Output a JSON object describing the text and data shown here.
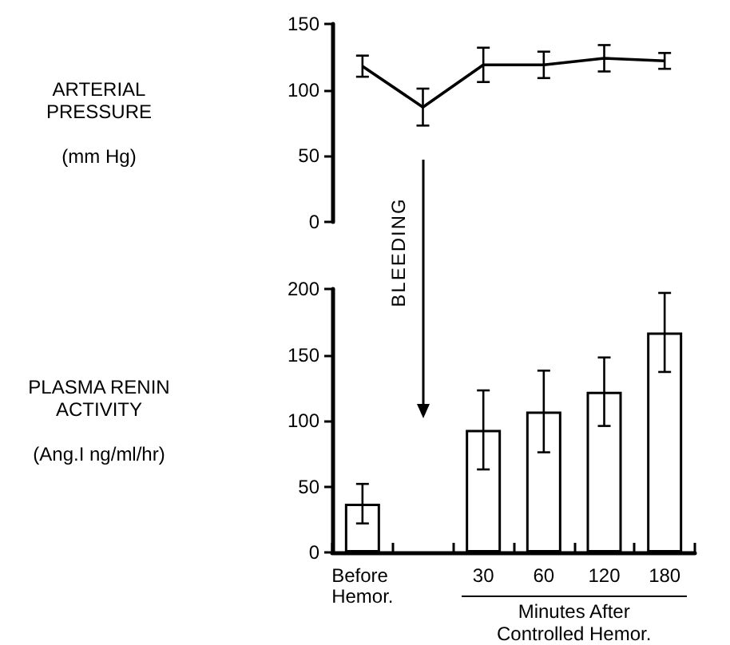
{
  "chart_data": [
    {
      "type": "line",
      "ylabel": "ARTERIAL\nPRESSURE\n\n(mm Hg)",
      "categories": [
        "Before Hemor.",
        null,
        "30",
        "60",
        "120",
        "180"
      ],
      "series": [
        {
          "color": "#000000",
          "values": [
            118,
            87,
            119,
            119,
            124,
            122
          ],
          "errors": [
            8,
            14,
            13,
            10,
            10,
            6
          ]
        }
      ],
      "ylim": [
        0,
        150
      ],
      "yticks": [
        0,
        50,
        100,
        150
      ],
      "tick_labels": "y",
      "marker": "none",
      "annotations": [
        "BLEEDING"
      ]
    },
    {
      "type": "bar",
      "ylabel": "PLASMA RENIN\nACTIVITY\n\n(Ang.I ng/ml/hr)",
      "xlabel": "Minutes After\nControlled Hemor.",
      "categories": [
        "Before Hemor.",
        null,
        "30",
        "60",
        "120",
        "180"
      ],
      "series": [
        {
          "color": "#ffffff",
          "values": [
            37,
            null,
            93,
            107,
            122,
            167
          ],
          "errors": [
            15,
            null,
            30,
            31,
            26,
            30
          ]
        }
      ],
      "ylim": [
        0,
        200
      ],
      "yticks": [
        0,
        50,
        100,
        150,
        200
      ]
    }
  ]
}
